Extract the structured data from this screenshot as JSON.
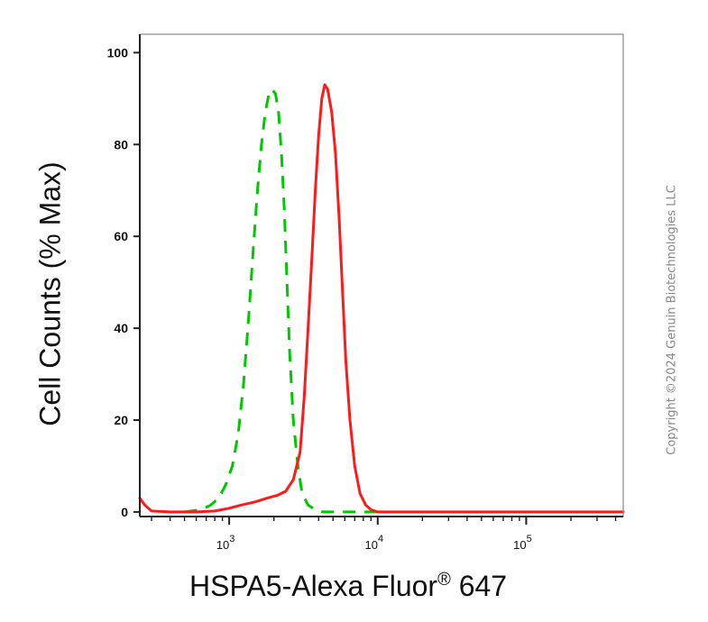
{
  "chart_data": {
    "type": "line",
    "ylabel": "Cell Counts (% Max)",
    "xlabel": "HSPA5-Alexa Fluor",
    "xlabel_sup": "®",
    "xlabel_suffix": " 647",
    "x_scale": "log",
    "xlim": [
      250,
      450000
    ],
    "ylim": [
      -1,
      104
    ],
    "y_ticks": [
      0,
      20,
      40,
      60,
      80,
      100
    ],
    "y_tick_labels": [
      "0",
      "20",
      "40",
      "60",
      "80",
      "100"
    ],
    "x_ticks": [
      1000,
      10000,
      100000
    ],
    "x_tick_labels": [
      {
        "base": "10",
        "exp": "3"
      },
      {
        "base": "10",
        "exp": "4"
      },
      {
        "base": "10",
        "exp": "5"
      }
    ],
    "series": [
      {
        "color": "#00c800",
        "style": "dashed",
        "points": [
          [
            500,
            0
          ],
          [
            650,
            0.5
          ],
          [
            750,
            1.5
          ],
          [
            850,
            3
          ],
          [
            950,
            6
          ],
          [
            1050,
            10
          ],
          [
            1150,
            17
          ],
          [
            1250,
            28
          ],
          [
            1350,
            42
          ],
          [
            1450,
            57
          ],
          [
            1550,
            70
          ],
          [
            1650,
            80
          ],
          [
            1750,
            87
          ],
          [
            1850,
            91
          ],
          [
            1950,
            92
          ],
          [
            2050,
            91
          ],
          [
            2150,
            87
          ],
          [
            2250,
            78
          ],
          [
            2350,
            66
          ],
          [
            2450,
            50
          ],
          [
            2550,
            35
          ],
          [
            2700,
            20
          ],
          [
            2900,
            10
          ],
          [
            3100,
            4
          ],
          [
            3400,
            1.5
          ],
          [
            3800,
            0.5
          ],
          [
            4300,
            0
          ],
          [
            6000,
            0
          ],
          [
            10000,
            0
          ]
        ]
      },
      {
        "color": "#ff1a1a",
        "style": "solid",
        "points": [
          [
            250,
            3
          ],
          [
            270,
            1.5
          ],
          [
            300,
            0.2
          ],
          [
            400,
            0
          ],
          [
            600,
            0
          ],
          [
            800,
            0.2
          ],
          [
            1000,
            0.8
          ],
          [
            1200,
            1.5
          ],
          [
            1500,
            2.2
          ],
          [
            1800,
            3
          ],
          [
            2100,
            3.6
          ],
          [
            2400,
            4.5
          ],
          [
            2700,
            7
          ],
          [
            3000,
            13
          ],
          [
            3200,
            25
          ],
          [
            3400,
            40
          ],
          [
            3600,
            55
          ],
          [
            3800,
            70
          ],
          [
            4000,
            82
          ],
          [
            4200,
            90
          ],
          [
            4400,
            93
          ],
          [
            4600,
            92
          ],
          [
            4900,
            87
          ],
          [
            5200,
            78
          ],
          [
            5500,
            64
          ],
          [
            5800,
            48
          ],
          [
            6100,
            33
          ],
          [
            6500,
            20
          ],
          [
            7000,
            10
          ],
          [
            7600,
            4
          ],
          [
            8300,
            1.5
          ],
          [
            9000,
            0.5
          ],
          [
            10000,
            0
          ],
          [
            20000,
            0
          ],
          [
            100000,
            0
          ],
          [
            450000,
            0
          ]
        ]
      }
    ]
  },
  "watermark": "Copyright ©2024 Genuin Biotechnologies LLC"
}
